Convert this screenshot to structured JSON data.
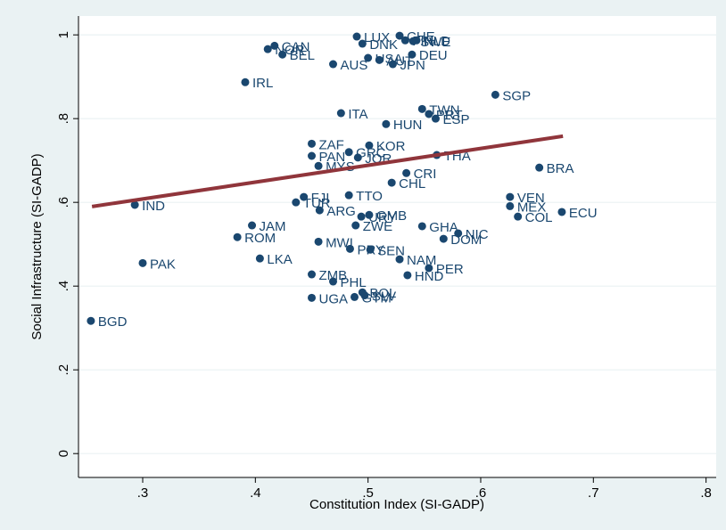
{
  "chart_data": {
    "type": "scatter",
    "xlabel": "Constitution Index (SI-GADP)",
    "ylabel": "Social Infrastructure (SI-GADP)",
    "xlim": [
      0.243,
      0.809
    ],
    "ylim": [
      -0.057,
      1.045
    ],
    "xticks": [
      {
        "value": 0.3,
        "label": ".3"
      },
      {
        "value": 0.4,
        "label": ".4"
      },
      {
        "value": 0.5,
        "label": ".5"
      },
      {
        "value": 0.6,
        "label": ".6"
      },
      {
        "value": 0.7,
        "label": ".7"
      },
      {
        "value": 0.8,
        "label": ".8"
      }
    ],
    "yticks": [
      0,
      {
        "value": 0.2,
        "label": ".2"
      },
      {
        "value": 0.4,
        "label": ".4"
      },
      {
        "value": 0.6,
        "label": ".6"
      },
      {
        "value": 0.8,
        "label": ".8"
      },
      1
    ],
    "grid": true,
    "color": "#1a476f",
    "point_labels": [
      "BGD",
      "PAK",
      "IND",
      "IRL",
      "CAN",
      "NOR",
      "BEL",
      "AUS",
      "LUX",
      "CHE",
      "DNK",
      "FIN",
      "SWE",
      "NLD",
      "DEU",
      "USA",
      "AUT",
      "JPN",
      "SGP",
      "TWN",
      "PRT",
      "ESP",
      "ITA",
      "HUN",
      "ZAF",
      "KOR",
      "PAN",
      "GRC",
      "JOR",
      "MYS",
      "THA",
      "CRI",
      "CHL",
      "BRA",
      "TTO",
      "FJI",
      "TUR",
      "ARG",
      "VEN",
      "MEX",
      "ECU",
      "COL",
      "JAM",
      "ROM",
      "GMB",
      "URY",
      "ZWE",
      "GHA",
      "NIC",
      "DOM",
      "MWI",
      "PRY",
      "SEN",
      "NAM",
      "LKA",
      "PER",
      "HND",
      "ZMB",
      "PHL",
      "UGA",
      "GTM",
      "SLV",
      "BOL"
    ],
    "x": [
      0.254,
      0.3,
      0.293,
      0.391,
      0.417,
      0.411,
      0.424,
      0.469,
      0.49,
      0.528,
      0.495,
      0.533,
      0.54,
      0.543,
      0.539,
      0.5,
      0.51,
      0.522,
      0.613,
      0.548,
      0.554,
      0.56,
      0.476,
      0.516,
      0.45,
      0.501,
      0.45,
      0.483,
      0.491,
      0.456,
      0.561,
      0.534,
      0.521,
      0.652,
      0.483,
      0.443,
      0.436,
      0.457,
      0.626,
      0.626,
      0.672,
      0.633,
      0.397,
      0.384,
      0.501,
      0.494,
      0.489,
      0.548,
      0.58,
      0.567,
      0.456,
      0.484,
      0.502,
      0.528,
      0.404,
      0.554,
      0.535,
      0.45,
      0.469,
      0.45,
      0.488,
      0.497,
      0.495
    ],
    "values": [
      0.317,
      0.455,
      0.594,
      0.887,
      0.974,
      0.966,
      0.953,
      0.93,
      0.996,
      0.998,
      0.979,
      0.987,
      0.985,
      0.987,
      0.953,
      0.945,
      0.94,
      0.93,
      0.857,
      0.823,
      0.811,
      0.8,
      0.813,
      0.787,
      0.74,
      0.736,
      0.711,
      0.72,
      0.707,
      0.687,
      0.713,
      0.67,
      0.647,
      0.683,
      0.617,
      0.613,
      0.6,
      0.581,
      0.613,
      0.591,
      0.577,
      0.566,
      0.545,
      0.517,
      0.57,
      0.566,
      0.545,
      0.543,
      0.526,
      0.513,
      0.506,
      0.489,
      0.487,
      0.464,
      0.466,
      0.443,
      0.426,
      0.428,
      0.411,
      0.372,
      0.374,
      0.378,
      0.385
    ],
    "fit_line": {
      "x": [
        0.255,
        0.673
      ],
      "values": [
        0.59,
        0.758
      ],
      "color": "#90353b"
    }
  }
}
